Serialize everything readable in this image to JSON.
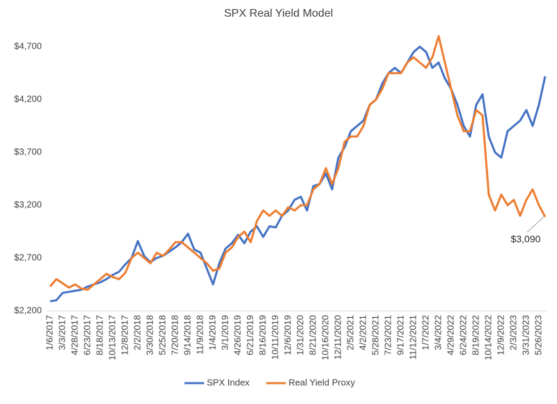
{
  "chart_data": {
    "type": "line",
    "title": "SPX Real Yield Model",
    "categories": [
      "1/6/2017",
      null,
      "3/3/2017",
      null,
      "4/28/2017",
      null,
      "6/23/2017",
      null,
      "8/18/2017",
      null,
      "10/13/2017",
      null,
      "12/8/2017",
      null,
      "2/2/2018",
      null,
      "3/30/2018",
      null,
      "5/25/2018",
      null,
      "7/20/2018",
      null,
      "9/14/2018",
      null,
      "11/9/2018",
      null,
      "1/4/2019",
      null,
      "3/1/2019",
      null,
      "4/26/2019",
      null,
      "6/21/2019",
      null,
      "8/16/2019",
      null,
      "10/11/2019",
      null,
      "12/6/2019",
      null,
      "1/31/2020",
      null,
      "8/21/2020",
      null,
      "10/16/2020",
      null,
      "12/11/2020",
      null,
      "2/5/2021",
      null,
      "4/2/2021",
      null,
      "5/28/2021",
      null,
      "7/23/2021",
      null,
      "9/17/2021",
      null,
      "11/12/2021",
      null,
      "1/7/2022",
      null,
      "3/4/2022",
      null,
      "4/29/2022",
      null,
      "6/24/2022",
      null,
      "8/19/2022",
      null,
      "10/14/2022",
      null,
      "12/9/2022",
      null,
      "2/3/2023",
      null,
      "3/31/2023",
      null,
      "5/26/2023",
      null
    ],
    "series": [
      {
        "name": "SPX Index",
        "color": "#4472c4",
        "values": [
          2290,
          2300,
          2370,
          2380,
          2390,
          2400,
          2430,
          2450,
          2470,
          2500,
          2540,
          2570,
          2640,
          2700,
          2860,
          2720,
          2660,
          2700,
          2720,
          2760,
          2800,
          2850,
          2930,
          2780,
          2750,
          2600,
          2450,
          2650,
          2790,
          2840,
          2920,
          2840,
          2950,
          3000,
          2900,
          3000,
          2990,
          3100,
          3150,
          3250,
          3280,
          3150,
          3380,
          3400,
          3500,
          3350,
          3650,
          3750,
          3900,
          3950,
          4000,
          4150,
          4200,
          4350,
          4450,
          4500,
          4450,
          4550,
          4650,
          4700,
          4650,
          4500,
          4550,
          4400,
          4300,
          4150,
          3950,
          3850,
          4150,
          4250,
          3850,
          3700,
          3650,
          3900,
          3950,
          4000,
          4100,
          3950,
          4150,
          4420
        ]
      },
      {
        "name": "Real Yield Proxy",
        "color": "#ed7d31",
        "values": [
          2430,
          2500,
          2460,
          2420,
          2450,
          2410,
          2400,
          2450,
          2500,
          2550,
          2520,
          2500,
          2560,
          2700,
          2750,
          2700,
          2650,
          2750,
          2720,
          2780,
          2850,
          2850,
          2800,
          2750,
          2700,
          2650,
          2580,
          2600,
          2750,
          2800,
          2900,
          2950,
          2850,
          3050,
          3150,
          3100,
          3150,
          3100,
          3180,
          3150,
          3200,
          3200,
          3350,
          3400,
          3550,
          3400,
          3550,
          3800,
          3850,
          3850,
          3950,
          4150,
          4200,
          4300,
          4450,
          4450,
          4450,
          4550,
          4600,
          4550,
          4500,
          4600,
          4800,
          4550,
          4300,
          4050,
          3900,
          3900,
          4100,
          4050,
          3300,
          3150,
          3300,
          3200,
          3250,
          3100,
          3250,
          3350,
          3200,
          3090
        ]
      }
    ],
    "annotation": "$3,090",
    "ylim": [
      2200,
      4800
    ],
    "yticks": [
      {
        "value": 2200,
        "label": "$2,200"
      },
      {
        "value": 2700,
        "label": "$2,700"
      },
      {
        "value": 3200,
        "label": "$3,200"
      },
      {
        "value": 3700,
        "label": "$3,700"
      },
      {
        "value": 4200,
        "label": "$4,200"
      },
      {
        "value": 4700,
        "label": "$4,700"
      }
    ],
    "legend": "bottom"
  }
}
